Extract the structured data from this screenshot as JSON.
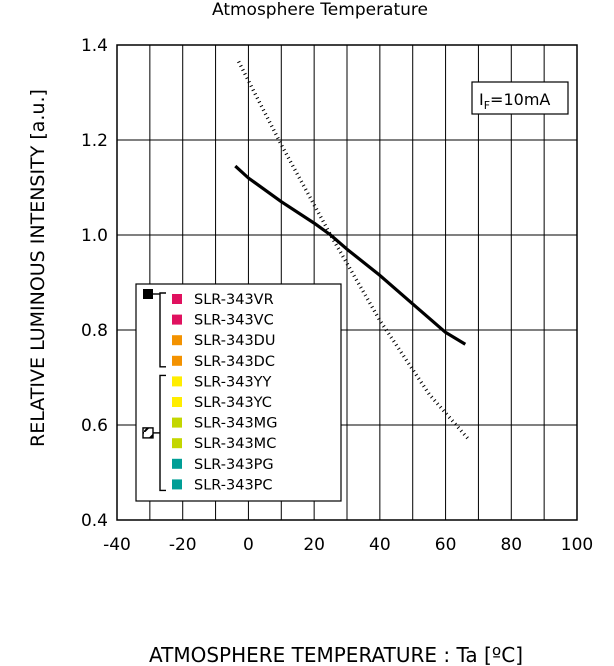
{
  "chart_data": {
    "type": "line",
    "title": "Atmosphere Temperature",
    "xlabel": "ATMOSPHERE TEMPERATURE : Ta [ºC]",
    "ylabel": "RELATIVE LUMINOUS INTENSITY [a.u.]",
    "xlim": [
      -40,
      100
    ],
    "ylim": [
      0.4,
      1.4
    ],
    "x_ticks": [
      "-40",
      "-20",
      "0",
      "20",
      "40",
      "60",
      "80",
      "100"
    ],
    "y_ticks": [
      "0.4",
      "0.6",
      "0.8",
      "1.0",
      "1.2",
      "1.4"
    ],
    "grid": true,
    "condition": {
      "main": "I",
      "sub": "F",
      "rest": "=10mA"
    },
    "series": [
      {
        "style": "solid",
        "color": "#000000",
        "x": [
          -4,
          0,
          10,
          20,
          25,
          30,
          40,
          50,
          60,
          66
        ],
        "y": [
          1.145,
          1.12,
          1.07,
          1.025,
          1.0,
          0.97,
          0.915,
          0.855,
          0.795,
          0.77
        ]
      },
      {
        "style": "dotted",
        "color": "#000000",
        "x": [
          -3,
          10,
          25,
          40,
          55,
          67
        ],
        "y": [
          1.365,
          1.19,
          1.0,
          0.82,
          0.665,
          0.57
        ]
      }
    ],
    "legend": {
      "placement": "lower-left",
      "groups": [
        {
          "marker": "solid-square",
          "items": [
            {
              "label": "SLR-343VR",
              "color": "#e0115f"
            },
            {
              "label": "SLR-343VC",
              "color": "#e0115f"
            },
            {
              "label": "SLR-343DU",
              "color": "#f39200"
            },
            {
              "label": "SLR-343DC",
              "color": "#f39200"
            }
          ]
        },
        {
          "marker": "hatched-square",
          "items": [
            {
              "label": "SLR-343YY",
              "color": "#ffed00"
            },
            {
              "label": "SLR-343YC",
              "color": "#ffed00"
            },
            {
              "label": "SLR-343MG",
              "color": "#c3d600"
            },
            {
              "label": "SLR-343MC",
              "color": "#c3d600"
            },
            {
              "label": "SLR-343PG",
              "color": "#009e96"
            },
            {
              "label": "SLR-343PC",
              "color": "#009e96"
            }
          ]
        }
      ]
    }
  }
}
